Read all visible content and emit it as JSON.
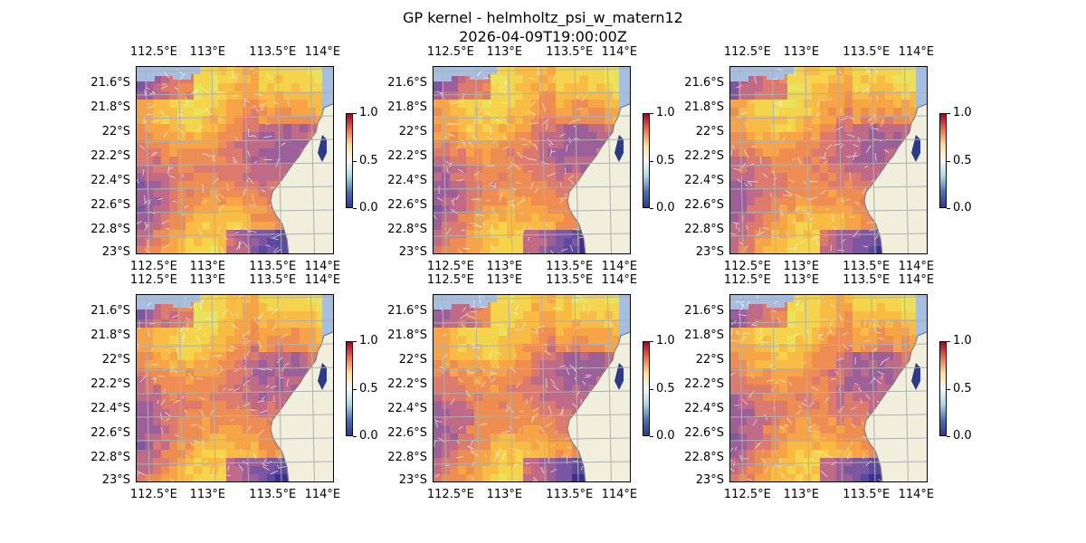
{
  "figure": {
    "title_line1": "GP kernel - helmholtz_psi_w_matern12",
    "title_line2": "2026-04-09T19:00:00Z"
  },
  "colors": {
    "land": "#efefdb",
    "water_shallow": "#a5bfe2",
    "coast": "#7f7f7f",
    "grid": "#b0b0b0",
    "colormap": "RdYlBu_r"
  },
  "panels_count": 6,
  "axes": {
    "x_ticks": [
      "112.5°E",
      "113°E",
      "113.5°E",
      "114°E"
    ],
    "y_ticks": [
      "21.6°S",
      "21.8°S",
      "22°S",
      "22.2°S",
      "22.4°S",
      "22.6°S",
      "22.8°S",
      "23°S"
    ]
  },
  "colorbar": {
    "ticks": [
      "1.0",
      "0.5",
      "0.0"
    ],
    "range": [
      0.0,
      1.0
    ]
  }
}
